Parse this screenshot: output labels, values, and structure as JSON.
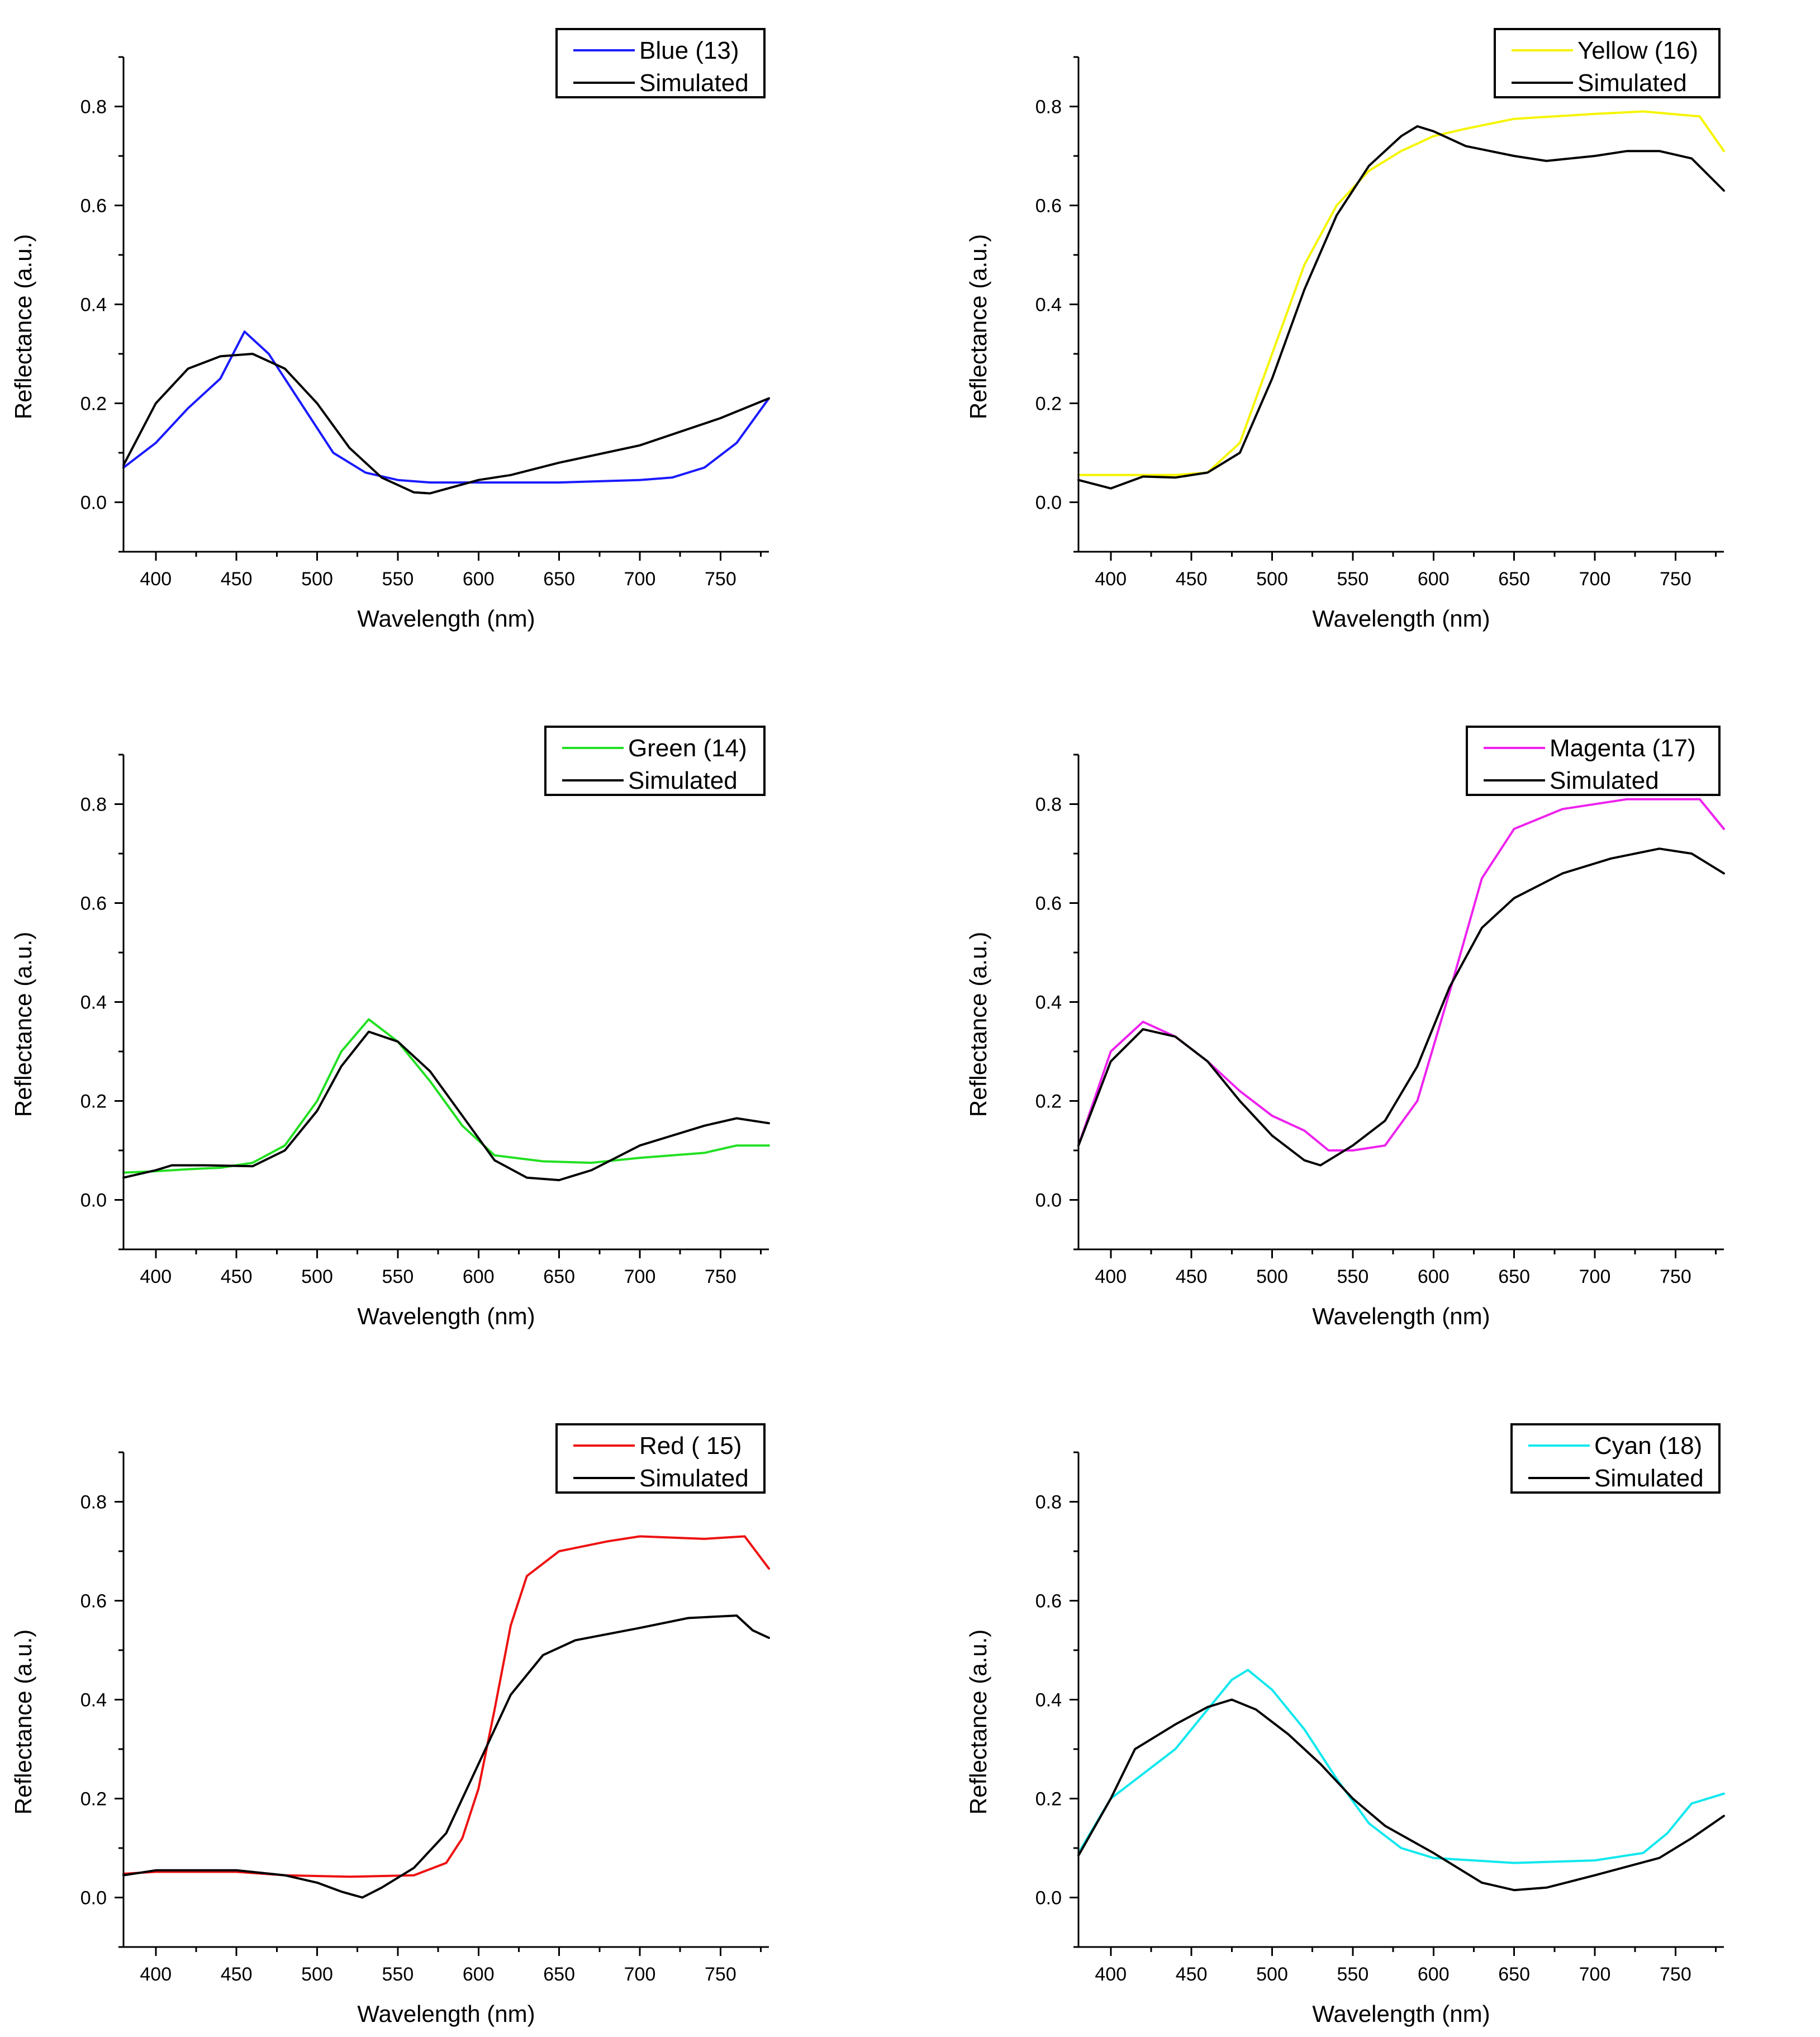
{
  "chart_data": [
    {
      "type": "line",
      "xlabel": "Wavelength (nm)",
      "ylabel": "Reflectance (a.u.)",
      "xlim": [
        380,
        780
      ],
      "ylim": [
        -0.1,
        0.9
      ],
      "xticks": [
        400,
        450,
        500,
        550,
        600,
        650,
        700,
        750
      ],
      "yticks": [
        0.0,
        0.2,
        0.4,
        0.6,
        0.8
      ],
      "xtick_labels": [
        "400",
        "450",
        "500",
        "550",
        "600",
        "650",
        "700",
        "750"
      ],
      "ytick_labels": [
        "0.0",
        "0.2",
        "0.4",
        "0.6",
        "0.8"
      ],
      "legend_position": "top-right",
      "grid": false,
      "series": [
        {
          "name": "Blue (13)",
          "color": "#1a1aff",
          "x": [
            380,
            400,
            420,
            440,
            455,
            470,
            490,
            510,
            530,
            550,
            570,
            600,
            650,
            700,
            720,
            740,
            760,
            780
          ],
          "y": [
            0.07,
            0.12,
            0.19,
            0.25,
            0.345,
            0.3,
            0.2,
            0.1,
            0.06,
            0.045,
            0.04,
            0.04,
            0.04,
            0.045,
            0.05,
            0.07,
            0.12,
            0.21
          ]
        },
        {
          "name": "Simulated",
          "color": "#000000",
          "x": [
            380,
            400,
            420,
            440,
            460,
            480,
            500,
            520,
            540,
            560,
            570,
            600,
            620,
            650,
            700,
            750,
            780
          ],
          "y": [
            0.075,
            0.2,
            0.27,
            0.295,
            0.3,
            0.27,
            0.2,
            0.11,
            0.05,
            0.02,
            0.018,
            0.045,
            0.055,
            0.08,
            0.115,
            0.17,
            0.21
          ]
        }
      ]
    },
    {
      "type": "line",
      "xlabel": "Wavelength (nm)",
      "ylabel": "Reflectance (a.u.)",
      "xlim": [
        380,
        780
      ],
      "ylim": [
        -0.1,
        0.9
      ],
      "xticks": [
        400,
        450,
        500,
        550,
        600,
        650,
        700,
        750
      ],
      "yticks": [
        0.0,
        0.2,
        0.4,
        0.6,
        0.8
      ],
      "xtick_labels": [
        "400",
        "450",
        "500",
        "550",
        "600",
        "650",
        "700",
        "750"
      ],
      "ytick_labels": [
        "0.0",
        "0.2",
        "0.4",
        "0.6",
        "0.8"
      ],
      "legend_position": "top-right",
      "grid": false,
      "series": [
        {
          "name": "Yellow (16)",
          "color": "#f5f500",
          "x": [
            380,
            400,
            420,
            440,
            460,
            480,
            500,
            520,
            540,
            560,
            580,
            600,
            620,
            650,
            700,
            730,
            765,
            780
          ],
          "y": [
            0.055,
            0.055,
            0.055,
            0.055,
            0.06,
            0.12,
            0.3,
            0.48,
            0.6,
            0.67,
            0.71,
            0.74,
            0.755,
            0.775,
            0.785,
            0.79,
            0.78,
            0.71
          ]
        },
        {
          "name": "Simulated",
          "color": "#000000",
          "x": [
            380,
            400,
            420,
            440,
            460,
            480,
            500,
            520,
            540,
            560,
            580,
            590,
            600,
            620,
            650,
            670,
            700,
            720,
            740,
            760,
            780
          ],
          "y": [
            0.045,
            0.028,
            0.052,
            0.05,
            0.06,
            0.1,
            0.25,
            0.43,
            0.58,
            0.68,
            0.74,
            0.76,
            0.75,
            0.72,
            0.7,
            0.69,
            0.7,
            0.71,
            0.71,
            0.695,
            0.63
          ]
        }
      ]
    },
    {
      "type": "line",
      "xlabel": "Wavelength (nm)",
      "ylabel": "Reflectance (a.u.)",
      "xlim": [
        380,
        780
      ],
      "ylim": [
        -0.1,
        0.9
      ],
      "xticks": [
        400,
        450,
        500,
        550,
        600,
        650,
        700,
        750
      ],
      "yticks": [
        0.0,
        0.2,
        0.4,
        0.6,
        0.8
      ],
      "xtick_labels": [
        "400",
        "450",
        "500",
        "550",
        "600",
        "650",
        "700",
        "750"
      ],
      "ytick_labels": [
        "0.0",
        "0.2",
        "0.4",
        "0.6",
        "0.8"
      ],
      "legend_position": "top-right",
      "grid": false,
      "series": [
        {
          "name": "Green (14)",
          "color": "#22e022",
          "x": [
            380,
            400,
            420,
            440,
            460,
            480,
            500,
            515,
            532,
            550,
            570,
            590,
            610,
            640,
            670,
            700,
            740,
            760,
            780
          ],
          "y": [
            0.055,
            0.058,
            0.062,
            0.065,
            0.075,
            0.11,
            0.2,
            0.3,
            0.365,
            0.32,
            0.24,
            0.15,
            0.09,
            0.078,
            0.075,
            0.085,
            0.095,
            0.11,
            0.11
          ]
        },
        {
          "name": "Simulated",
          "color": "#000000",
          "x": [
            380,
            400,
            410,
            430,
            460,
            480,
            500,
            515,
            532,
            550,
            570,
            590,
            610,
            630,
            650,
            670,
            700,
            740,
            760,
            780
          ],
          "y": [
            0.045,
            0.06,
            0.07,
            0.07,
            0.068,
            0.1,
            0.18,
            0.27,
            0.34,
            0.32,
            0.26,
            0.17,
            0.08,
            0.045,
            0.04,
            0.06,
            0.11,
            0.15,
            0.165,
            0.155
          ]
        }
      ]
    },
    {
      "type": "line",
      "xlabel": "Wavelength (nm)",
      "ylabel": "Reflectance (a.u.)",
      "xlim": [
        380,
        780
      ],
      "ylim": [
        -0.1,
        0.9
      ],
      "xticks": [
        400,
        450,
        500,
        550,
        600,
        650,
        700,
        750
      ],
      "yticks": [
        0.0,
        0.2,
        0.4,
        0.6,
        0.8
      ],
      "xtick_labels": [
        "400",
        "450",
        "500",
        "550",
        "600",
        "650",
        "700",
        "750"
      ],
      "ytick_labels": [
        "0.0",
        "0.2",
        "0.4",
        "0.6",
        "0.8"
      ],
      "legend_position": "top-right",
      "grid": false,
      "series": [
        {
          "name": "Magenta (17)",
          "color": "#ee22ee",
          "x": [
            380,
            400,
            420,
            440,
            460,
            480,
            500,
            520,
            535,
            550,
            570,
            590,
            610,
            630,
            650,
            680,
            720,
            760,
            765,
            780
          ],
          "y": [
            0.11,
            0.3,
            0.36,
            0.33,
            0.28,
            0.22,
            0.17,
            0.14,
            0.1,
            0.1,
            0.11,
            0.2,
            0.42,
            0.65,
            0.75,
            0.79,
            0.81,
            0.81,
            0.81,
            0.75
          ]
        },
        {
          "name": "Simulated",
          "color": "#000000",
          "x": [
            380,
            400,
            420,
            440,
            460,
            480,
            500,
            520,
            530,
            550,
            570,
            590,
            610,
            630,
            650,
            680,
            710,
            740,
            760,
            780
          ],
          "y": [
            0.11,
            0.28,
            0.345,
            0.33,
            0.28,
            0.2,
            0.13,
            0.08,
            0.07,
            0.11,
            0.16,
            0.27,
            0.43,
            0.55,
            0.61,
            0.66,
            0.69,
            0.71,
            0.7,
            0.66
          ]
        }
      ]
    },
    {
      "type": "line",
      "xlabel": "Wavelength (nm)",
      "ylabel": "Reflectance (a.u.)",
      "xlim": [
        380,
        780
      ],
      "ylim": [
        -0.1,
        0.9
      ],
      "xticks": [
        400,
        450,
        500,
        550,
        600,
        650,
        700,
        750
      ],
      "yticks": [
        0.0,
        0.2,
        0.4,
        0.6,
        0.8
      ],
      "xtick_labels": [
        "400",
        "450",
        "500",
        "550",
        "600",
        "650",
        "700",
        "750"
      ],
      "ytick_labels": [
        "0.0",
        "0.2",
        "0.4",
        "0.6",
        "0.8"
      ],
      "legend_position": "top-right",
      "grid": false,
      "series": [
        {
          "name": "Red ( 15)",
          "color": "#ee1111",
          "x": [
            380,
            400,
            450,
            480,
            520,
            560,
            580,
            590,
            600,
            610,
            620,
            630,
            650,
            680,
            700,
            740,
            765,
            780
          ],
          "y": [
            0.048,
            0.052,
            0.052,
            0.045,
            0.042,
            0.045,
            0.07,
            0.12,
            0.22,
            0.38,
            0.55,
            0.65,
            0.7,
            0.72,
            0.73,
            0.725,
            0.73,
            0.665
          ]
        },
        {
          "name": "Simulated",
          "color": "#000000",
          "x": [
            380,
            400,
            450,
            480,
            500,
            515,
            528,
            540,
            560,
            580,
            600,
            620,
            640,
            660,
            700,
            730,
            760,
            770,
            780
          ],
          "y": [
            0.045,
            0.055,
            0.055,
            0.045,
            0.03,
            0.012,
            0.0,
            0.02,
            0.06,
            0.13,
            0.27,
            0.41,
            0.49,
            0.52,
            0.545,
            0.565,
            0.57,
            0.54,
            0.525
          ]
        }
      ]
    },
    {
      "type": "line",
      "xlabel": "Wavelength (nm)",
      "ylabel": "Reflectance (a.u.)",
      "xlim": [
        380,
        780
      ],
      "ylim": [
        -0.1,
        0.9
      ],
      "xticks": [
        400,
        450,
        500,
        550,
        600,
        650,
        700,
        750
      ],
      "yticks": [
        0.0,
        0.2,
        0.4,
        0.6,
        0.8
      ],
      "xtick_labels": [
        "400",
        "450",
        "500",
        "550",
        "600",
        "650",
        "700",
        "750"
      ],
      "ytick_labels": [
        "0.0",
        "0.2",
        "0.4",
        "0.6",
        "0.8"
      ],
      "legend_position": "top-right",
      "grid": false,
      "series": [
        {
          "name": "Cyan (18)",
          "color": "#11e8ee",
          "x": [
            380,
            400,
            420,
            440,
            460,
            475,
            485,
            500,
            520,
            540,
            560,
            580,
            600,
            650,
            700,
            730,
            745,
            760,
            780
          ],
          "y": [
            0.09,
            0.2,
            0.25,
            0.3,
            0.38,
            0.44,
            0.46,
            0.42,
            0.34,
            0.24,
            0.15,
            0.1,
            0.08,
            0.07,
            0.075,
            0.09,
            0.13,
            0.19,
            0.21
          ]
        },
        {
          "name": "Simulated",
          "color": "#000000",
          "x": [
            380,
            400,
            415,
            440,
            460,
            475,
            490,
            510,
            530,
            550,
            570,
            600,
            630,
            650,
            670,
            700,
            740,
            760,
            780
          ],
          "y": [
            0.085,
            0.2,
            0.3,
            0.35,
            0.385,
            0.4,
            0.38,
            0.33,
            0.27,
            0.2,
            0.145,
            0.09,
            0.03,
            0.015,
            0.02,
            0.045,
            0.08,
            0.12,
            0.165
          ]
        }
      ]
    }
  ]
}
